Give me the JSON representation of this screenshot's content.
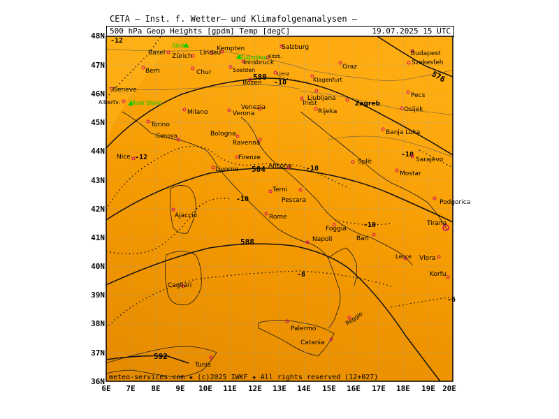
{
  "header": {
    "line1": "CETA – Inst. f. Wetter– und Klimafolgenanalysen –",
    "line2_left": "500 hPa Geop Heights [gpdm] Temp [degC]",
    "line2_right": "19.07.2025 15 UTC"
  },
  "footer": {
    "copyright": "meteo-services.com ★ (c)2025 IWKF ★ All rights reserved (12+027)"
  },
  "axes": {
    "lat_labels": [
      "48N",
      "47N",
      "46N",
      "45N",
      "44N",
      "43N",
      "42N",
      "41N",
      "40N",
      "39N",
      "38N",
      "37N",
      "36N"
    ],
    "lon_labels": [
      "6E",
      "7E",
      "8E",
      "9E",
      "10E",
      "11E",
      "12E",
      "13E",
      "14E",
      "15E",
      "16E",
      "17E",
      "18E",
      "19E",
      "20E"
    ]
  },
  "contours": {
    "height_labels": [
      "580",
      "584",
      "588",
      "592",
      "576"
    ],
    "temp_labels": [
      "-12",
      "-10",
      "-10",
      "-10",
      "-10",
      "-10",
      "-8",
      "-6",
      "-12"
    ]
  },
  "cities": [
    {
      "name": "Basel"
    },
    {
      "name": "Zürich"
    },
    {
      "name": "Lindau"
    },
    {
      "name": "Kempten"
    },
    {
      "name": "Salzburg"
    },
    {
      "name": "Kitzb."
    },
    {
      "name": "Innsbruck"
    },
    {
      "name": "Bern"
    },
    {
      "name": "Chur"
    },
    {
      "name": "Soelden"
    },
    {
      "name": "Lienz"
    },
    {
      "name": "Graz"
    },
    {
      "name": "Budapest"
    },
    {
      "name": "Szekesfeh"
    },
    {
      "name": "Geneve"
    },
    {
      "name": "Albertv."
    },
    {
      "name": "Bozen"
    },
    {
      "name": "Klagenfurt"
    },
    {
      "name": "Ljubljana"
    },
    {
      "name": "Zagreb"
    },
    {
      "name": "Pecs"
    },
    {
      "name": "Osijek"
    },
    {
      "name": "Milano"
    },
    {
      "name": "Verona"
    },
    {
      "name": "Venezia"
    },
    {
      "name": "Triest"
    },
    {
      "name": "Rijeka"
    },
    {
      "name": "Torino"
    },
    {
      "name": "Genova"
    },
    {
      "name": "Bologna"
    },
    {
      "name": "Ravenna"
    },
    {
      "name": "Banja Luka"
    },
    {
      "name": "Firenze"
    },
    {
      "name": "Nice"
    },
    {
      "name": "Sarajevo"
    },
    {
      "name": "Split"
    },
    {
      "name": "Ancona"
    },
    {
      "name": "Livorno"
    },
    {
      "name": "Mostar"
    },
    {
      "name": "Terni"
    },
    {
      "name": "Pescara"
    },
    {
      "name": "Podgorica"
    },
    {
      "name": "Ajaccio"
    },
    {
      "name": "Rome"
    },
    {
      "name": "Foggia"
    },
    {
      "name": "Tirana"
    },
    {
      "name": "Bari"
    },
    {
      "name": "Napoli"
    },
    {
      "name": "Lecce"
    },
    {
      "name": "Vlora"
    },
    {
      "name": "Korfu"
    },
    {
      "name": "Cagliari"
    },
    {
      "name": "Reggio"
    },
    {
      "name": "Palermo"
    },
    {
      "name": "Catania"
    },
    {
      "name": "Tunis"
    }
  ],
  "peaks": [
    {
      "name": "Säntis"
    },
    {
      "name": "Zugspitze"
    },
    {
      "name": "Mont Blanc"
    }
  ],
  "colors": {
    "field_dark": "#e58a00",
    "field_light": "#ffae10",
    "field_mid": "#f59a00",
    "city_marker": "#d0006a",
    "peak_label": "#00cc00",
    "grid": "#a0a0a0"
  }
}
